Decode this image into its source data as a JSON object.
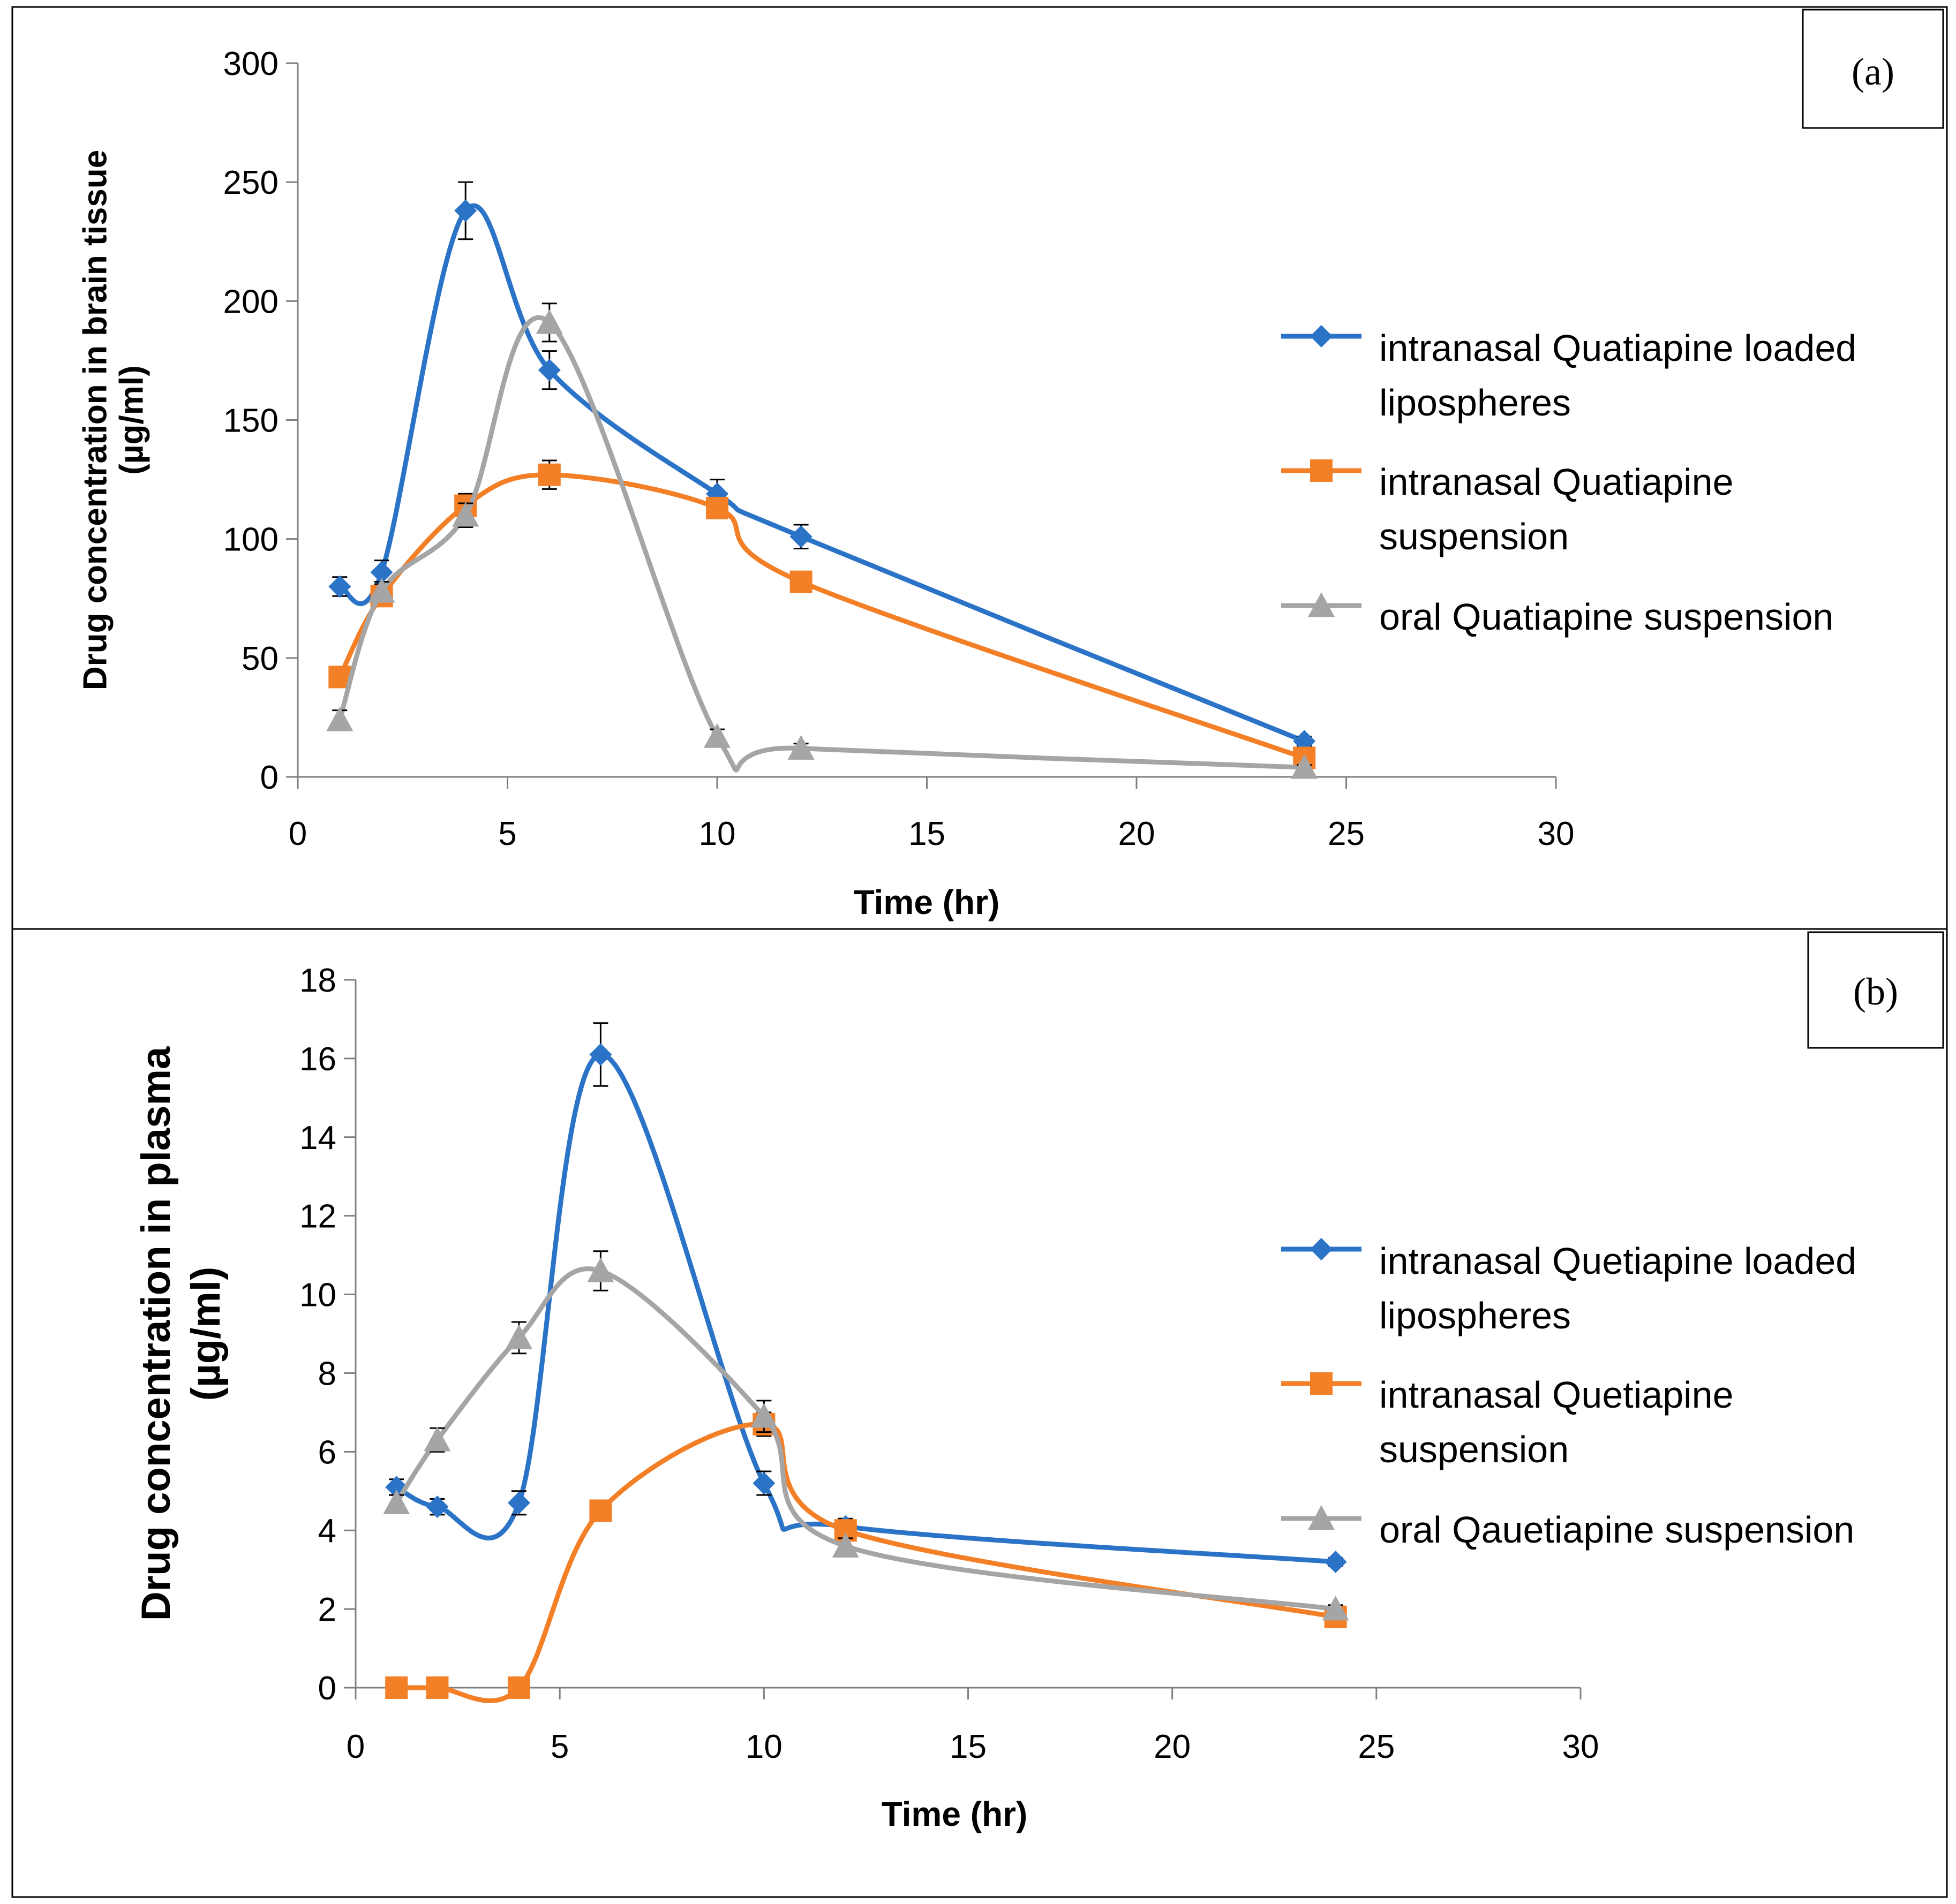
{
  "chart_data": [
    {
      "type": "line",
      "panel_label": "(a)",
      "xlabel": "Time (hr)",
      "ylabel_lines": [
        "Drug concentration in brain tissue",
        "(µg/ml)"
      ],
      "xlim": [
        0,
        30
      ],
      "ylim": [
        0,
        300
      ],
      "x_ticks": [
        0,
        5,
        10,
        15,
        20,
        25,
        30
      ],
      "y_ticks": [
        0,
        50,
        100,
        150,
        200,
        250,
        300
      ],
      "grid": false,
      "legend_position": "right",
      "series": [
        {
          "name": "intranasal Quatiapine loaded lipospheres",
          "legend_lines": [
            "intranasal Quatiapine loaded",
            "lipospheres"
          ],
          "color": "#2a73c7",
          "marker": "diamond",
          "x": [
            1,
            2,
            4,
            6,
            10,
            12,
            24
          ],
          "values": [
            80,
            86,
            238,
            171,
            119,
            101,
            15
          ],
          "errors": [
            4,
            5,
            12,
            8,
            6,
            5,
            2
          ]
        },
        {
          "name": "intranasal Quatiapine suspension",
          "legend_lines": [
            "intranasal Quatiapine",
            "suspension"
          ],
          "color": "#f37f27",
          "marker": "square",
          "x": [
            1,
            2,
            4,
            6,
            10,
            12,
            24
          ],
          "values": [
            42,
            76,
            114,
            127,
            113,
            82,
            8
          ],
          "errors": [
            3,
            3,
            5,
            6,
            4,
            3,
            2
          ]
        },
        {
          "name": "oral Quatiapine suspension",
          "legend_lines": [
            "oral Quatiapine suspension"
          ],
          "color": "#a5a5a5",
          "marker": "triangle",
          "x": [
            1,
            2,
            4,
            6,
            10,
            12,
            24
          ],
          "values": [
            24,
            78,
            110,
            191,
            17,
            12,
            4
          ],
          "errors": [
            4,
            4,
            5,
            8,
            3,
            2,
            1
          ]
        }
      ]
    },
    {
      "type": "line",
      "panel_label": "(b)",
      "xlabel": "Time (hr)",
      "ylabel_lines": [
        "Drug concentration in plasma",
        "(µg/ml)"
      ],
      "xlim": [
        0,
        30
      ],
      "ylim": [
        0,
        18
      ],
      "x_ticks": [
        0,
        5,
        10,
        15,
        20,
        25,
        30
      ],
      "y_ticks": [
        0,
        2,
        4,
        6,
        8,
        10,
        12,
        14,
        16,
        18
      ],
      "grid": false,
      "legend_position": "right",
      "series": [
        {
          "name": "intranasal Quetiapine loaded lipospheres",
          "legend_lines": [
            "intranasal Quetiapine loaded",
            "lipospheres"
          ],
          "color": "#2a73c7",
          "marker": "diamond",
          "x": [
            1,
            2,
            4,
            6,
            10,
            12,
            24
          ],
          "values": [
            5.1,
            4.6,
            4.7,
            16.1,
            5.2,
            4.1,
            3.2
          ],
          "errors": [
            0.2,
            0.2,
            0.3,
            0.8,
            0.3,
            0.2,
            0.1
          ]
        },
        {
          "name": "intranasal Quetiapine suspension",
          "legend_lines": [
            "intranasal Quetiapine",
            "suspension"
          ],
          "color": "#f37f27",
          "marker": "square",
          "x": [
            1,
            2,
            4,
            6,
            10,
            12,
            24
          ],
          "values": [
            0,
            0,
            0,
            4.5,
            6.7,
            4.0,
            1.8
          ],
          "errors": [
            0,
            0,
            0,
            0.2,
            0.3,
            0.2,
            0.1
          ]
        },
        {
          "name": "oral Qauetiapine suspension",
          "legend_lines": [
            "oral Qauetiapine suspension"
          ],
          "color": "#a5a5a5",
          "marker": "triangle",
          "x": [
            1,
            2,
            4,
            6,
            10,
            12,
            24
          ],
          "values": [
            4.7,
            6.3,
            8.9,
            10.6,
            6.9,
            3.6,
            2.0
          ],
          "errors": [
            0.2,
            0.3,
            0.4,
            0.5,
            0.4,
            0.2,
            0.1
          ]
        }
      ]
    }
  ]
}
